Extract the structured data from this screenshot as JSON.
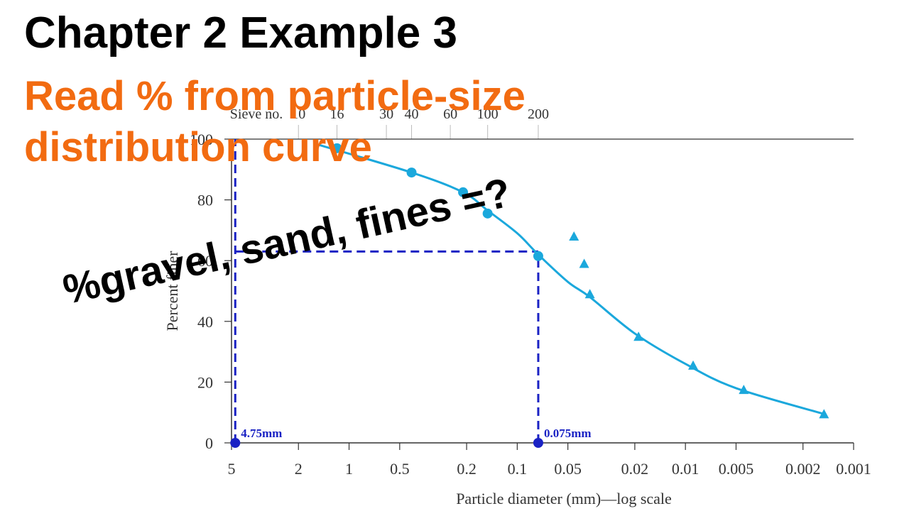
{
  "title": "Chapter 2 Example 3",
  "subtitle": "Read % from particle-size distribution curve",
  "question": "%gravel, sand, fines =?",
  "chart_data": {
    "type": "scatter",
    "x_scale": "log",
    "x_reversed": true,
    "xlim": [
      5,
      0.001
    ],
    "ylim": [
      0,
      100
    ],
    "xlabel": "Particle diameter (mm)—log scale",
    "ylabel": "Percent finer",
    "x_ticks": [
      5,
      2,
      1,
      0.5,
      0.2,
      0.1,
      0.05,
      0.02,
      0.01,
      0.005,
      0.002,
      0.001
    ],
    "x_tick_labels": [
      "5",
      "2",
      "1",
      "0.5",
      "0.2",
      "0.1",
      "0.05",
      "0.02",
      "0.01",
      "0.005",
      "0.002",
      "0.001"
    ],
    "y_ticks": [
      0,
      20,
      40,
      60,
      80,
      100
    ],
    "y_tick_labels": [
      "0",
      "20",
      "40",
      "60",
      "80",
      "100"
    ],
    "sieve_axis": {
      "label": "Sieve no.",
      "sieves": [
        {
          "label": "10",
          "x": 2.0
        },
        {
          "label": "16",
          "x": 1.18
        },
        {
          "label": "30",
          "x": 0.6
        },
        {
          "label": "40",
          "x": 0.425
        },
        {
          "label": "60",
          "x": 0.25
        },
        {
          "label": "100",
          "x": 0.15
        },
        {
          "label": "200",
          "x": 0.075
        }
      ]
    },
    "series": [
      {
        "marker": "circle",
        "color": "#1ba8dc",
        "points": [
          {
            "x": 1.18,
            "y": 97
          },
          {
            "x": 0.425,
            "y": 89
          },
          {
            "x": 0.21,
            "y": 82.5
          },
          {
            "x": 0.15,
            "y": 75.5
          },
          {
            "x": 0.075,
            "y": 61.5
          }
        ]
      },
      {
        "marker": "triangle",
        "color": "#1ba8dc",
        "points": [
          {
            "x": 0.046,
            "y": 68
          },
          {
            "x": 0.04,
            "y": 59
          },
          {
            "x": 0.037,
            "y": 49
          },
          {
            "x": 0.019,
            "y": 35
          },
          {
            "x": 0.009,
            "y": 25.5
          },
          {
            "x": 0.0045,
            "y": 17.5
          },
          {
            "x": 0.0015,
            "y": 9.5
          }
        ]
      },
      {
        "type": "curve",
        "color": "#1ba8dc",
        "points": [
          {
            "x": 1.6,
            "y": 98.5
          },
          {
            "x": 0.425,
            "y": 89
          },
          {
            "x": 0.21,
            "y": 82.5
          },
          {
            "x": 0.15,
            "y": 76.5
          },
          {
            "x": 0.1,
            "y": 69
          },
          {
            "x": 0.075,
            "y": 62
          },
          {
            "x": 0.05,
            "y": 53
          },
          {
            "x": 0.037,
            "y": 48
          },
          {
            "x": 0.02,
            "y": 36
          },
          {
            "x": 0.01,
            "y": 26
          },
          {
            "x": 0.005,
            "y": 18
          },
          {
            "x": 0.0015,
            "y": 9.5
          }
        ]
      }
    ],
    "reference_lines": [
      {
        "type": "vertical",
        "x": 4.75,
        "y_from": 0,
        "y_to": 100
      },
      {
        "type": "vertical",
        "x": 0.075,
        "y_from": 0,
        "y_to": 63
      },
      {
        "type": "horizontal",
        "y": 63,
        "x_from": 4.75,
        "x_to": 0.075
      }
    ],
    "reference_color": "#1a22c4",
    "annotations": [
      {
        "x": 4.75,
        "y": 0,
        "text": "4.75mm"
      },
      {
        "x": 0.075,
        "y": 0,
        "text": "0.075mm"
      }
    ]
  }
}
